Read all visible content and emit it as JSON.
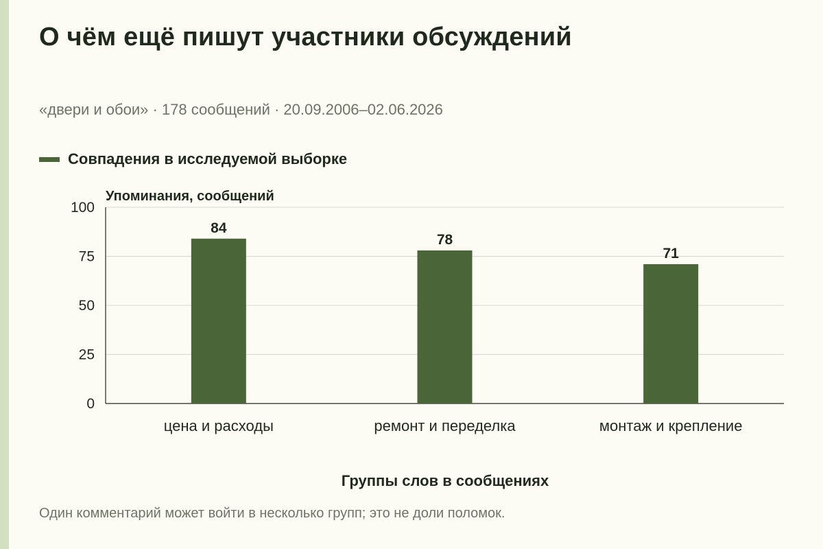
{
  "title": "О чём ещё пишут участники обсуждений",
  "subtitle": "«двери и обои» · 178 сообщений · 20.09.2006–02.06.2026",
  "colors": {
    "background": "#fdfcf4",
    "accent_stripe": "#d3dfbf",
    "bar": "#4a6538",
    "text": "#1f2a1c",
    "muted": "#6b7566",
    "grid": "#d6d6cf"
  },
  "chart_data": {
    "type": "bar",
    "categories": [
      "цена и расходы",
      "ремонт и переделка",
      "монтаж и крепление"
    ],
    "series": [
      {
        "name": "Совпадения в исследуемой выборке",
        "values": [
          84,
          78,
          71
        ]
      }
    ],
    "xlabel": "Группы слов в сообщениях",
    "ylabel": "Упоминания, сообщений",
    "ylim": [
      0,
      100
    ],
    "yticks": [
      0,
      25,
      50,
      75,
      100
    ],
    "data_labels": true,
    "grid": true,
    "legend_position": "top-left"
  },
  "footnote": "Один комментарий может войти в несколько групп; это не доли поломок."
}
